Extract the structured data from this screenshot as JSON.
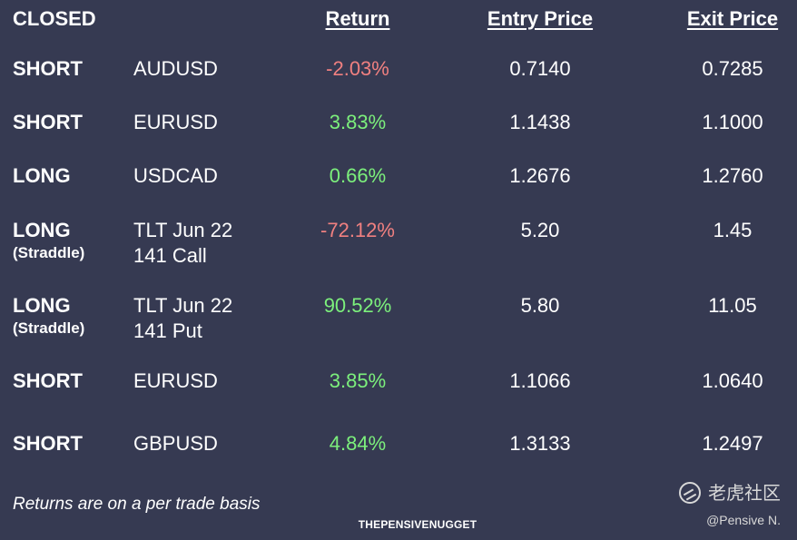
{
  "headers": {
    "status": "CLOSED",
    "return": "Return",
    "entry": "Entry Price",
    "exit": "Exit Price"
  },
  "rows": [
    {
      "direction": "SHORT",
      "sub": "",
      "instrument": "AUDUSD",
      "instrument2": "",
      "return": "-2.03%",
      "return_sign": "neg",
      "entry": "0.7140",
      "exit": "0.7285"
    },
    {
      "direction": "SHORT",
      "sub": "",
      "instrument": "EURUSD",
      "instrument2": "",
      "return": "3.83%",
      "return_sign": "pos",
      "entry": "1.1438",
      "exit": "1.1000"
    },
    {
      "direction": "LONG",
      "sub": "",
      "instrument": "USDCAD",
      "instrument2": "",
      "return": "0.66%",
      "return_sign": "pos",
      "entry": "1.2676",
      "exit": "1.2760"
    },
    {
      "direction": "LONG",
      "sub": "(Straddle)",
      "instrument": "TLT Jun 22",
      "instrument2": "141 Call",
      "return": "-72.12%",
      "return_sign": "neg",
      "entry": "5.20",
      "exit": "1.45"
    },
    {
      "direction": "LONG",
      "sub": "(Straddle)",
      "instrument": "TLT Jun 22",
      "instrument2": "141 Put",
      "return": "90.52%",
      "return_sign": "pos",
      "entry": "5.80",
      "exit": "11.05"
    },
    {
      "direction": "SHORT",
      "sub": "",
      "instrument": "EURUSD",
      "instrument2": "",
      "return": "3.85%",
      "return_sign": "pos",
      "entry": "1.1066",
      "exit": "1.0640"
    },
    {
      "direction": "SHORT",
      "sub": "",
      "instrument": "GBPUSD",
      "instrument2": "",
      "return": "4.84%",
      "return_sign": "pos",
      "entry": "1.3133",
      "exit": "1.2497"
    }
  ],
  "footer": {
    "note": "Returns are on a per trade basis",
    "brand": "THEPENSIVENUGGET",
    "watermark": "老虎社区",
    "handle": "@Pensive N."
  },
  "colors": {
    "background": "#363a52",
    "positive": "#7cf07c",
    "negative": "#f08080",
    "text": "#ffffff"
  },
  "icons": {
    "watermark_logo": "tiger-community-logo-icon"
  }
}
